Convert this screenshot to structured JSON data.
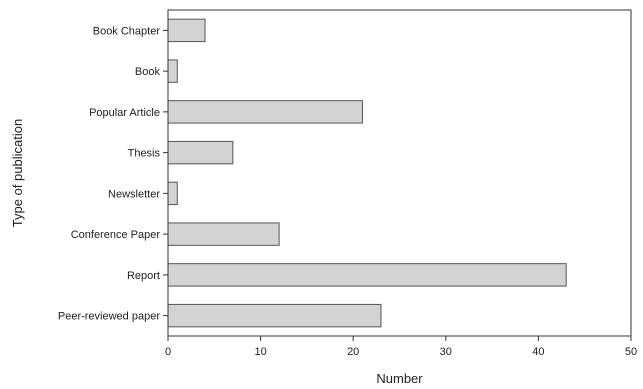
{
  "chart_data": {
    "type": "bar",
    "orientation": "horizontal",
    "categories": [
      "Book Chapter",
      "Book",
      "Popular Article",
      "Thesis",
      "Newsletter",
      "Conference Paper",
      "Report",
      "Peer-reviewed paper"
    ],
    "values": [
      4,
      1,
      21,
      7,
      1,
      12,
      43,
      23
    ],
    "title": "",
    "xlabel": "Number",
    "ylabel": "Type of publication",
    "xlim": [
      0,
      50
    ],
    "xticks": [
      0,
      10,
      20,
      30,
      40,
      50
    ],
    "grid": false,
    "legend": "none",
    "colors": {
      "bar_fill": "#d3d3d3",
      "bar_stroke": "#555555",
      "axis": "#333333"
    }
  }
}
